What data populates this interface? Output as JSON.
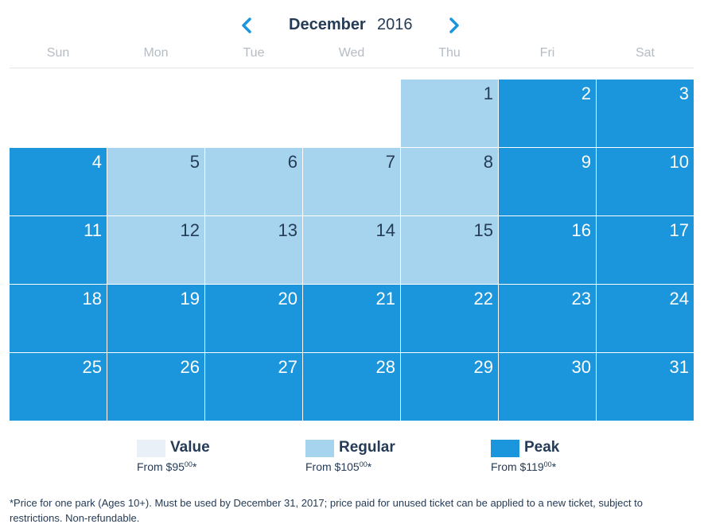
{
  "header": {
    "month": "December",
    "year": "2016",
    "prev_icon": "chevron-left-icon",
    "next_icon": "chevron-right-icon"
  },
  "weekdays": [
    "Sun",
    "Mon",
    "Tue",
    "Wed",
    "Thu",
    "Fri",
    "Sat"
  ],
  "calendar": {
    "first_weekday_index": 4,
    "days": [
      {
        "day": "1",
        "tier": "regular"
      },
      {
        "day": "2",
        "tier": "peak"
      },
      {
        "day": "3",
        "tier": "peak"
      },
      {
        "day": "4",
        "tier": "peak"
      },
      {
        "day": "5",
        "tier": "regular"
      },
      {
        "day": "6",
        "tier": "regular"
      },
      {
        "day": "7",
        "tier": "regular"
      },
      {
        "day": "8",
        "tier": "regular"
      },
      {
        "day": "9",
        "tier": "peak"
      },
      {
        "day": "10",
        "tier": "peak"
      },
      {
        "day": "11",
        "tier": "peak"
      },
      {
        "day": "12",
        "tier": "regular"
      },
      {
        "day": "13",
        "tier": "regular"
      },
      {
        "day": "14",
        "tier": "regular"
      },
      {
        "day": "15",
        "tier": "regular"
      },
      {
        "day": "16",
        "tier": "peak"
      },
      {
        "day": "17",
        "tier": "peak"
      },
      {
        "day": "18",
        "tier": "peak"
      },
      {
        "day": "19",
        "tier": "peak"
      },
      {
        "day": "20",
        "tier": "peak"
      },
      {
        "day": "21",
        "tier": "peak"
      },
      {
        "day": "22",
        "tier": "peak"
      },
      {
        "day": "23",
        "tier": "peak"
      },
      {
        "day": "24",
        "tier": "peak"
      },
      {
        "day": "25",
        "tier": "peak"
      },
      {
        "day": "26",
        "tier": "peak"
      },
      {
        "day": "27",
        "tier": "peak"
      },
      {
        "day": "28",
        "tier": "peak"
      },
      {
        "day": "29",
        "tier": "peak"
      },
      {
        "day": "30",
        "tier": "peak"
      },
      {
        "day": "31",
        "tier": "peak"
      }
    ]
  },
  "legend": {
    "value": {
      "name": "Value",
      "price_prefix": "From $95",
      "price_cents": "00",
      "price_suffix": "*",
      "color": "#e9f0f8"
    },
    "regular": {
      "name": "Regular",
      "price_prefix": "From $105",
      "price_cents": "00",
      "price_suffix": "*",
      "color": "#a6d4ef"
    },
    "peak": {
      "name": "Peak",
      "price_prefix": "From $119",
      "price_cents": "00",
      "price_suffix": "*",
      "color": "#1b95dc"
    }
  },
  "footnote": "*Price for one park (Ages 10+). Must be used by December 31, 2017; price paid for unused ticket can be applied to a new ticket, subject to restrictions. Non-refundable.",
  "colors": {
    "text": "#253b56",
    "accent": "#1b95dc",
    "weekday": "#b5bcc4"
  }
}
